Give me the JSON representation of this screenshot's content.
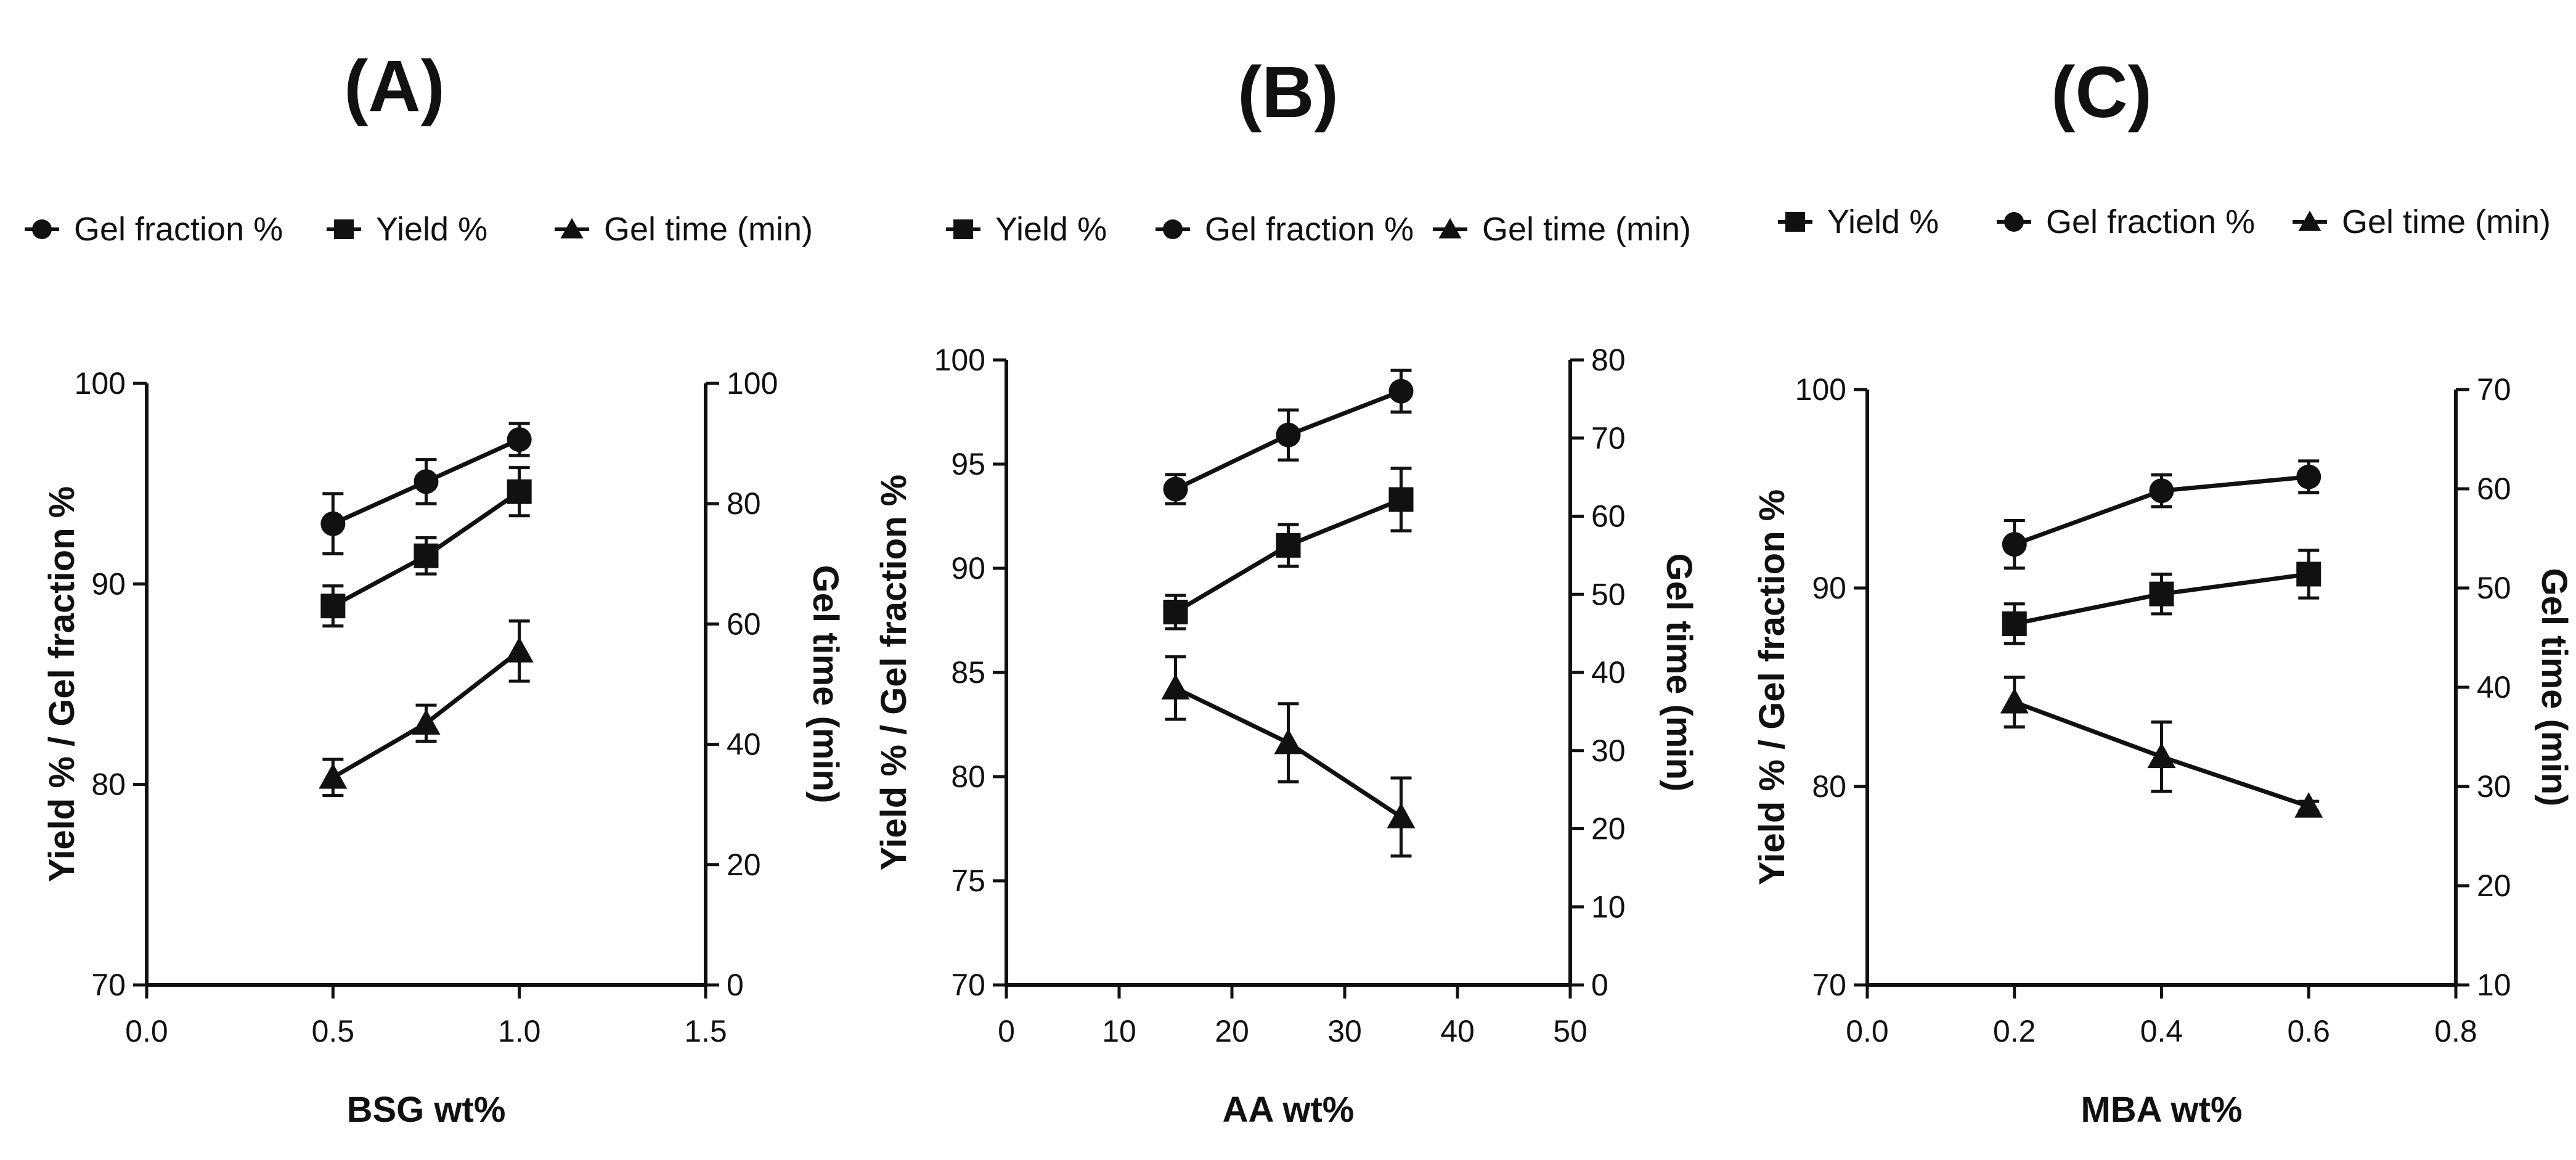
{
  "chart_data": [
    {
      "type": "line",
      "panel_label": "(A)",
      "legend": [
        {
          "label": "Gel fraction %",
          "marker": "circle"
        },
        {
          "label": "Yield %",
          "marker": "square"
        },
        {
          "label": "Gel time (min)",
          "marker": "triangle"
        }
      ],
      "xlabel": "BSG wt%",
      "ylabel": "Yield %  / Gel fraction %",
      "y2label": "Gel time (min)",
      "xlim": [
        0,
        1.5
      ],
      "ylim": [
        70,
        100
      ],
      "y2lim": [
        0,
        100
      ],
      "xticks": [
        "0.0",
        "0.5",
        "1.0",
        "1.5"
      ],
      "yticks": [
        "70",
        "80",
        "90",
        "100"
      ],
      "y2ticks": [
        "0",
        "20",
        "40",
        "60",
        "80",
        "100"
      ],
      "series": [
        {
          "name": "Gel fraction %",
          "axis": "left",
          "marker": "circle",
          "x": [
            0.5,
            0.75,
            1.0
          ],
          "y": [
            93.0,
            95.1,
            97.2
          ],
          "err": [
            1.5,
            1.1,
            0.8
          ]
        },
        {
          "name": "Yield %",
          "axis": "left",
          "marker": "square",
          "x": [
            0.5,
            0.75,
            1.0
          ],
          "y": [
            88.9,
            91.4,
            94.6
          ],
          "err": [
            1.0,
            0.9,
            1.2
          ]
        },
        {
          "name": "Gel time (min)",
          "axis": "right",
          "marker": "triangle",
          "x": [
            0.5,
            0.75,
            1.0
          ],
          "y": [
            34.5,
            43.5,
            55.5
          ],
          "err": [
            3.0,
            3.0,
            5.0
          ]
        }
      ]
    },
    {
      "type": "line",
      "panel_label": "(B)",
      "legend": [
        {
          "label": "Yield %",
          "marker": "square"
        },
        {
          "label": "Gel fraction %",
          "marker": "circle"
        },
        {
          "label": "Gel time (min)",
          "marker": "triangle"
        }
      ],
      "xlabel": "AA wt%",
      "ylabel": "Yield % / Gel fraction %",
      "y2label": "Gel time (min)",
      "xlim": [
        0,
        50
      ],
      "ylim": [
        70,
        100
      ],
      "y2lim": [
        0,
        80
      ],
      "xticks": [
        "0",
        "10",
        "20",
        "30",
        "40",
        "50"
      ],
      "yticks": [
        "70",
        "75",
        "80",
        "85",
        "90",
        "95",
        "100"
      ],
      "y2ticks": [
        "0",
        "10",
        "20",
        "30",
        "40",
        "50",
        "60",
        "70",
        "80"
      ],
      "series": [
        {
          "name": "Yield %",
          "axis": "left",
          "marker": "square",
          "x": [
            15,
            25,
            35
          ],
          "y": [
            87.9,
            91.1,
            93.3
          ],
          "err": [
            0.8,
            1.0,
            1.5
          ]
        },
        {
          "name": "Gel fraction %",
          "axis": "left",
          "marker": "circle",
          "x": [
            15,
            25,
            35
          ],
          "y": [
            93.8,
            96.4,
            98.5
          ],
          "err": [
            0.7,
            1.2,
            1.0
          ]
        },
        {
          "name": "Gel time (min)",
          "axis": "right",
          "marker": "triangle",
          "x": [
            15,
            25,
            35
          ],
          "y": [
            38.0,
            31.0,
            21.5
          ],
          "err": [
            4.0,
            5.0,
            5.0
          ]
        }
      ]
    },
    {
      "type": "line",
      "panel_label": "(C)",
      "legend": [
        {
          "label": "Yield %",
          "marker": "square"
        },
        {
          "label": "Gel fraction %",
          "marker": "circle"
        },
        {
          "label": "Gel time (min)",
          "marker": "triangle"
        }
      ],
      "xlabel": "MBA wt%",
      "ylabel": "Yield %  / Gel fraction %",
      "y2label": "Gel time (min)",
      "xlim": [
        0,
        0.8
      ],
      "ylim": [
        70,
        100
      ],
      "y2lim": [
        10,
        70
      ],
      "xticks": [
        "0.0",
        "0.2",
        "0.4",
        "0.6",
        "0.8"
      ],
      "yticks": [
        "70",
        "80",
        "90",
        "100"
      ],
      "y2ticks": [
        "10",
        "20",
        "30",
        "40",
        "50",
        "60",
        "70"
      ],
      "series": [
        {
          "name": "Yield %",
          "axis": "left",
          "marker": "square",
          "x": [
            0.2,
            0.4,
            0.6
          ],
          "y": [
            88.2,
            89.7,
            90.7
          ],
          "err": [
            1.0,
            1.0,
            1.2
          ]
        },
        {
          "name": "Gel fraction %",
          "axis": "left",
          "marker": "circle",
          "x": [
            0.2,
            0.4,
            0.6
          ],
          "y": [
            92.2,
            94.9,
            95.6
          ],
          "err": [
            1.2,
            0.8,
            0.8
          ]
        },
        {
          "name": "Gel time (min)",
          "axis": "right",
          "marker": "triangle",
          "x": [
            0.2,
            0.4,
            0.6
          ],
          "y": [
            38.5,
            33.0,
            28.0
          ],
          "err": [
            2.5,
            3.5,
            0.5
          ]
        }
      ]
    }
  ]
}
